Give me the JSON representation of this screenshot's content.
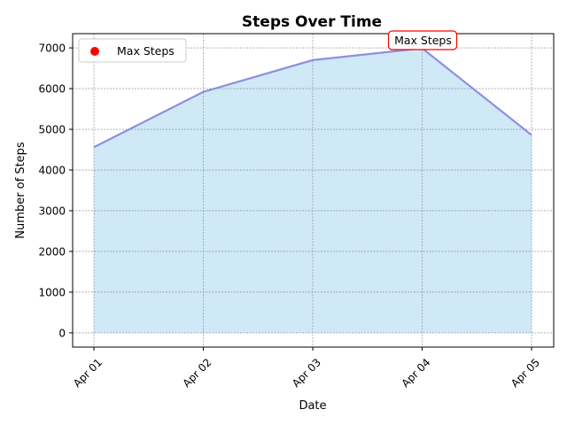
{
  "chart_data": {
    "type": "area",
    "title": "Steps Over Time",
    "xlabel": "Date",
    "ylabel": "Number of Steps",
    "categories": [
      "Apr 01",
      "Apr 02",
      "Apr 03",
      "Apr 04",
      "Apr 05"
    ],
    "series": [
      {
        "values": [
          4560,
          5920,
          6700,
          6990,
          4860
        ]
      }
    ],
    "ylim": [
      -350,
      7350
    ],
    "yticks": [
      0,
      1000,
      2000,
      3000,
      4000,
      5000,
      6000,
      7000
    ],
    "grid": true,
    "legend": {
      "placement": "top-left",
      "entries": [
        "Max Steps"
      ]
    },
    "annotation": {
      "text": "Max Steps",
      "category": "Apr 04",
      "value": 6990
    },
    "colors": {
      "line": "#8f8fdc",
      "fill": "#cfe9f7",
      "marker": "#ff0000",
      "annotation_border": "#ff0000",
      "grid": "#808080"
    }
  }
}
